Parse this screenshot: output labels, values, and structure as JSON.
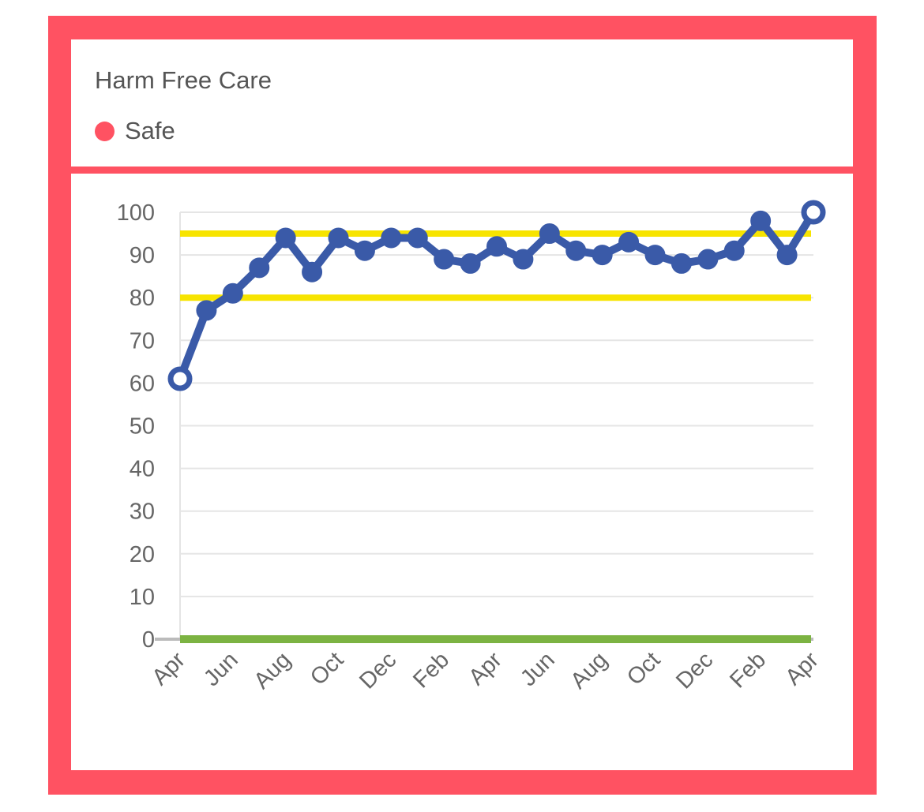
{
  "card": {
    "title": "Harm Free Care",
    "legend_label": "Safe"
  },
  "colors": {
    "frame": "#ff5262",
    "series_line": "#3a5aa8",
    "limit_line": "#f7e400",
    "baseline": "#7cb342",
    "grid": "#e5e5e5"
  },
  "chart_data": {
    "type": "line",
    "title": "Harm Free Care",
    "series_name": "Safe",
    "xlabel": "",
    "ylabel": "",
    "ylim": [
      0,
      100
    ],
    "yticks": [
      0,
      10,
      20,
      30,
      40,
      50,
      60,
      70,
      80,
      90,
      100
    ],
    "grid": true,
    "x_tick_labels": [
      "Apr",
      "Jun",
      "Aug",
      "Oct",
      "Dec",
      "Feb",
      "Apr",
      "Jun",
      "Aug",
      "Oct",
      "Dec",
      "Feb",
      "Apr"
    ],
    "series": [
      {
        "name": "Safe",
        "values": [
          61,
          77,
          81,
          87,
          94,
          86,
          94,
          91,
          94,
          94,
          89,
          88,
          92,
          89,
          95,
          91,
          90,
          93,
          90,
          88,
          89,
          91,
          98,
          90,
          100
        ]
      }
    ],
    "reference_lines": [
      {
        "value": 95,
        "color": "#f7e400"
      },
      {
        "value": 80,
        "color": "#f7e400"
      },
      {
        "value": 0,
        "color": "#7cb342"
      }
    ]
  }
}
